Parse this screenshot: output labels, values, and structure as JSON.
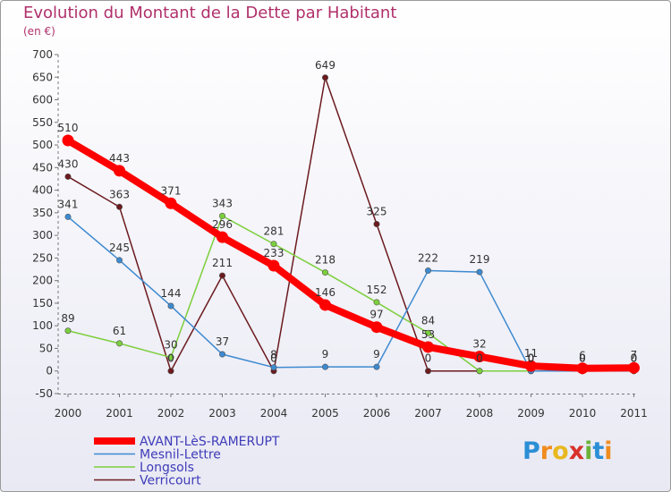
{
  "title": "Evolution du Montant de la Dette par Habitant",
  "subtitle": "(en €)",
  "logo": {
    "letters": [
      "P",
      "r",
      "o",
      "x",
      "i",
      "t",
      "i"
    ],
    "colors": [
      "#2b8fd6",
      "#f08c1e",
      "#e8b820",
      "#d8322b",
      "#6cb23a",
      "#2b8fd6",
      "#f08c1e"
    ]
  },
  "chart_data": {
    "type": "line",
    "title": "Evolution du Montant de la Dette par Habitant",
    "ylabel": "(en €)",
    "xlabel": "",
    "x": [
      "2000",
      "2001",
      "2002",
      "2003",
      "2004",
      "2005",
      "2006",
      "2007",
      "2008",
      "2009",
      "2010",
      "2011"
    ],
    "ylim": [
      -50,
      700
    ],
    "yticks": [
      "-50",
      "0",
      "50",
      "100",
      "150",
      "200",
      "250",
      "300",
      "350",
      "400",
      "450",
      "500",
      "550",
      "600",
      "650",
      "700"
    ],
    "grid": false,
    "legend_position": "bottom-left",
    "series": [
      {
        "name": "AVANT-LèS-RAMERUPT",
        "color": "#ff0000",
        "values": [
          510,
          443,
          371,
          296,
          233,
          146,
          97,
          53,
          32,
          11,
          6,
          7
        ],
        "labels": [
          "510",
          "443",
          "371",
          "296",
          "233",
          "146",
          "97",
          "53",
          "32",
          "11",
          "6",
          "7"
        ]
      },
      {
        "name": "Mesnil-Lettre",
        "color": "#3d8ad0",
        "values": [
          341,
          245,
          144,
          37,
          8,
          9,
          9,
          222,
          219,
          0,
          0,
          0
        ],
        "labels": [
          "341",
          "245",
          "144",
          "37",
          "8",
          "9",
          "9",
          "222",
          "219",
          "0",
          "0",
          "0"
        ]
      },
      {
        "name": "Longsols",
        "color": "#7ccf3c",
        "values": [
          89,
          61,
          30,
          343,
          281,
          218,
          152,
          84,
          0,
          0,
          0,
          0
        ],
        "labels": [
          "89",
          "61",
          "30",
          "343",
          "281",
          "218",
          "152",
          "84",
          "0",
          "0",
          "0",
          "0"
        ]
      },
      {
        "name": "Verricourt",
        "color": "#6b1a1e",
        "values": [
          430,
          363,
          0,
          211,
          0,
          649,
          325,
          0,
          0,
          0,
          0,
          0
        ],
        "labels": [
          "430",
          "363",
          "0",
          "211",
          "0",
          "649",
          "325",
          "0",
          "0",
          "0",
          "0",
          "0"
        ]
      }
    ]
  }
}
